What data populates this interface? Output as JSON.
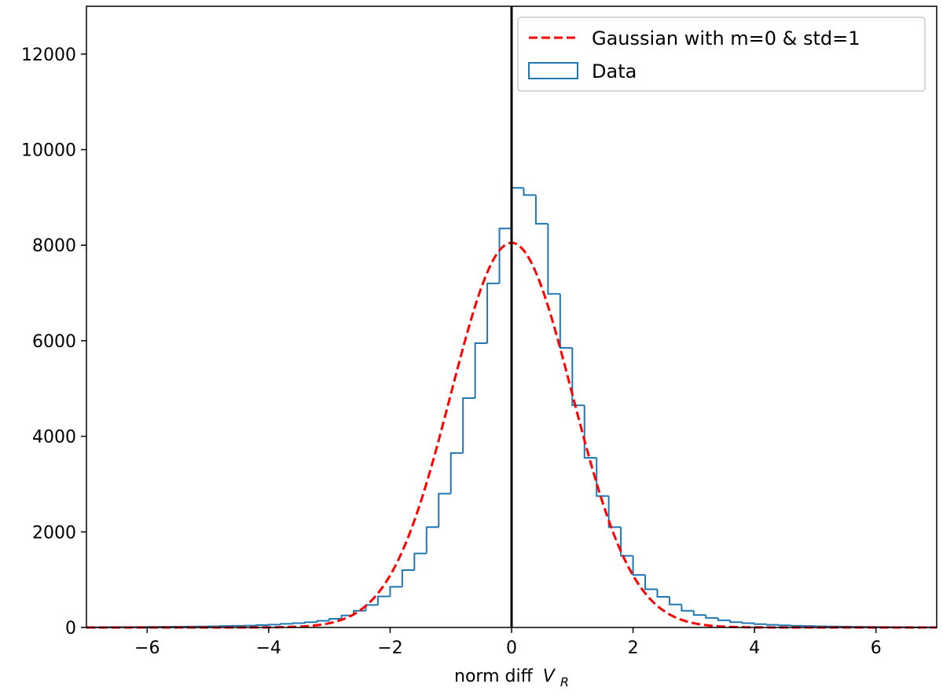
{
  "chart_data": {
    "type": "histogram",
    "title": "",
    "xlabel": "norm diff",
    "xlabel_symbol": "V",
    "xlabel_subscript": "R",
    "ylabel": "",
    "xlim": [
      -7,
      7
    ],
    "ylim": [
      0,
      13000
    ],
    "xticks": [
      -6,
      -4,
      -2,
      0,
      2,
      4,
      6
    ],
    "xtick_labels": [
      "−6",
      "−4",
      "−2",
      "0",
      "2",
      "4",
      "6"
    ],
    "yticks": [
      0,
      2000,
      4000,
      6000,
      8000,
      10000,
      12000
    ],
    "ytick_labels": [
      "0",
      "2000",
      "4000",
      "6000",
      "8000",
      "10000",
      "12000"
    ],
    "vertical_line_x": 0,
    "legend": {
      "position": "upper right",
      "entries": [
        {
          "label": "Gaussian with m=0 & std=1",
          "style": "dashed",
          "color": "#ff0000"
        },
        {
          "label": "Data",
          "style": "step",
          "color": "#1f77b4"
        }
      ]
    },
    "histogram": {
      "name": "Data",
      "color": "#1f77b4",
      "bin_edges": [
        -7.0,
        -6.8,
        -6.6,
        -6.4,
        -6.2,
        -6.0,
        -5.8,
        -5.6,
        -5.4,
        -5.2,
        -5.0,
        -4.8,
        -4.6,
        -4.4,
        -4.2,
        -4.0,
        -3.8,
        -3.6,
        -3.4,
        -3.2,
        -3.0,
        -2.8,
        -2.6,
        -2.4,
        -2.2,
        -2.0,
        -1.8,
        -1.6,
        -1.4,
        -1.2,
        -1.0,
        -0.8,
        -0.6,
        -0.4,
        -0.2,
        0.0,
        0.2,
        0.4,
        0.6,
        0.8,
        1.0,
        1.2,
        1.4,
        1.6,
        1.8,
        2.0,
        2.2,
        2.4,
        2.6,
        2.8,
        3.0,
        3.2,
        3.4,
        3.6,
        3.8,
        4.0,
        4.2,
        4.4,
        4.6,
        4.8,
        5.0,
        5.2,
        5.4,
        5.6,
        5.8,
        6.0,
        6.2,
        6.4,
        6.6,
        6.8,
        7.0
      ],
      "counts": [
        5,
        5,
        8,
        8,
        10,
        12,
        14,
        16,
        18,
        20,
        25,
        30,
        35,
        40,
        50,
        60,
        75,
        90,
        110,
        140,
        180,
        250,
        350,
        470,
        650,
        850,
        1200,
        1550,
        2100,
        2800,
        3650,
        4800,
        5950,
        7200,
        8350,
        9200,
        9050,
        8450,
        6980,
        5850,
        4650,
        3550,
        2750,
        2100,
        1500,
        1100,
        800,
        640,
        480,
        350,
        260,
        200,
        150,
        110,
        90,
        70,
        55,
        45,
        35,
        30,
        25,
        20,
        18,
        15,
        12,
        10,
        8,
        6,
        5,
        5
      ]
    },
    "gaussian": {
      "name": "Gaussian with m=0 & std=1",
      "mean": 0,
      "std": 1,
      "peak": 8050,
      "color": "#ff0000"
    }
  }
}
